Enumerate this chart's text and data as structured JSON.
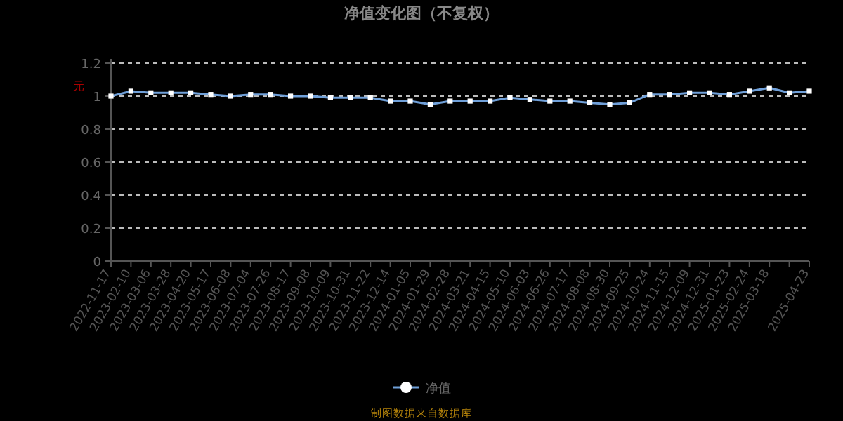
{
  "chart_data": {
    "type": "line",
    "title": "净值变化图（不复权）",
    "ylabel": "元",
    "categories": [
      "2022-11-17",
      "2023-02-10",
      "2023-03-06",
      "2023-03-28",
      "2023-04-20",
      "2023-05-17",
      "2023-06-08",
      "2023-07-04",
      "2023-07-26",
      "2023-08-17",
      "2023-09-08",
      "2023-10-09",
      "2023-10-31",
      "2023-11-22",
      "2023-12-14",
      "2024-01-05",
      "2024-01-29",
      "2024-02-28",
      "2024-03-21",
      "2024-04-15",
      "2024-05-10",
      "2024-06-03",
      "2024-06-26",
      "2024-07-17",
      "2024-08-08",
      "2024-08-30",
      "2024-09-25",
      "2024-10-24",
      "2024-11-15",
      "2024-12-09",
      "2024-12-31",
      "2025-01-23",
      "2025-02-24",
      "2025-03-18",
      null,
      "2025-04-23"
    ],
    "series": [
      {
        "name": "净值",
        "color": "#6f9fd8",
        "values": [
          1.0,
          1.03,
          1.02,
          1.02,
          1.02,
          1.01,
          1.0,
          1.01,
          1.01,
          1.0,
          1.0,
          0.99,
          0.99,
          0.99,
          0.97,
          0.97,
          0.95,
          0.97,
          0.97,
          0.97,
          0.99,
          0.98,
          0.97,
          0.97,
          0.96,
          0.95,
          0.96,
          1.01,
          1.01,
          1.02,
          1.02,
          1.01,
          1.03,
          1.05,
          1.02,
          1.03
        ]
      }
    ],
    "ylim": [
      0,
      1.2
    ],
    "yticks": [
      0,
      0.2,
      0.4,
      0.6,
      0.8,
      1,
      1.2
    ],
    "grid": "y",
    "legend": "bottom",
    "marker": "square",
    "line_style": "solid",
    "annotations": [
      "制图数据来自数据库"
    ]
  }
}
